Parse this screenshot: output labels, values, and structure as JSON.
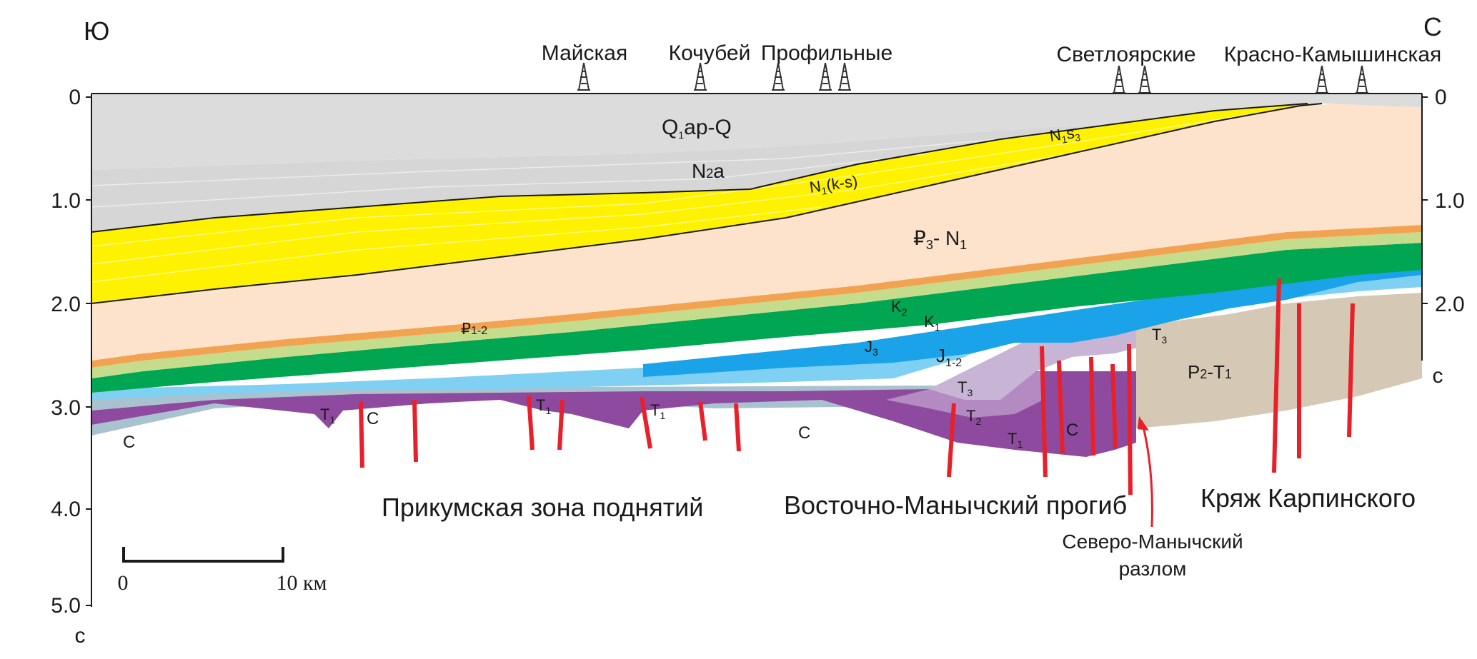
{
  "directions": {
    "south": "Ю",
    "north": "С"
  },
  "wells": [
    {
      "name": "Майская"
    },
    {
      "name": "Кочубей"
    },
    {
      "name": "Профильные"
    },
    {
      "name": "Светлоярские"
    },
    {
      "name": "Красно-Камышинская"
    }
  ],
  "axis_left": {
    "ticks": [
      "0",
      "1.0",
      "2.0",
      "3.0",
      "4.0",
      "5.0"
    ],
    "unit": "с"
  },
  "axis_right": {
    "ticks": [
      "0",
      "1.0",
      "2.0"
    ],
    "unit": "с"
  },
  "layers": {
    "q": {
      "main": "Q",
      "sub": "1",
      "rest": "ap-Q"
    },
    "n2a": {
      "main": "N",
      "sub": "2",
      "rest": "a"
    },
    "n1ks": {
      "main": "N",
      "sub": "1",
      "rest": "(k-s)"
    },
    "n1s3": {
      "main": "N",
      "sub": "1",
      "rest": "s",
      "sub2": "3"
    },
    "p3n1": {
      "main": "₽",
      "sub": "3",
      "rest": "- N",
      "sub2": "1"
    },
    "p12": {
      "main": "₽",
      "sub": "1-2"
    },
    "k2": {
      "main": "K",
      "sub": "2"
    },
    "k1": {
      "main": "K",
      "sub": "1"
    },
    "j3": {
      "main": "J",
      "sub": "3"
    },
    "j12": {
      "main": "J",
      "sub": "1-2"
    },
    "t1": {
      "main": "T",
      "sub": "1"
    },
    "t2": {
      "main": "T",
      "sub": "2"
    },
    "t3": {
      "main": "T",
      "sub": "3"
    },
    "c": {
      "main": "C"
    },
    "p2t1": {
      "main": "P",
      "sub": "2",
      "rest": "-T",
      "sub2": "1"
    }
  },
  "zones": {
    "prikumsk": "Прикумская зона поднятий",
    "vost_manych": "Восточно-Манычский прогиб",
    "karpinsky": "Кряж Карпинского"
  },
  "fault_label": {
    "line1": "Северо-Манычский",
    "line2": "разлом"
  },
  "scale_bar": {
    "start": "0",
    "end": "10 км"
  },
  "colors": {
    "quaternary": "#dcdcdc",
    "n2a": "#d6d6d6",
    "yellow": "#fff200",
    "paleogene": "#fde3cc",
    "orange": "#f2a352",
    "light_green": "#c5dc8c",
    "green": "#00a651",
    "light_blue": "#7fd0f2",
    "blue": "#1aa3e8",
    "triassic_light": "#c8b5d6",
    "triassic_mid": "#b48ac2",
    "purple": "#8e4a9e",
    "carboniferous": "#a9c2cf",
    "basement": "#d5c9b5",
    "fault": "#e8202a"
  }
}
